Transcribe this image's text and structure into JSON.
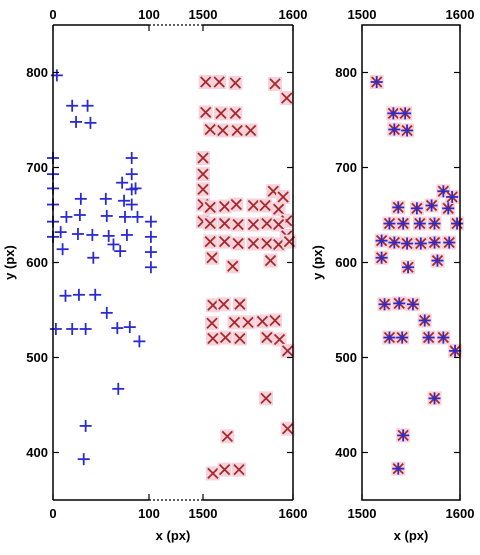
{
  "chart_data": [
    {
      "type": "scatter",
      "panel": "left",
      "xlabel": "x (px)",
      "ylabel": "y (px)",
      "x_segments": [
        {
          "xlim": [
            0,
            100
          ],
          "ticks": [
            "0",
            "100"
          ]
        },
        {
          "xlim": [
            1500,
            1600
          ],
          "ticks": [
            "1500",
            "1600"
          ]
        }
      ],
      "ylim": [
        350,
        850
      ],
      "yticks": [
        "400",
        "500",
        "600",
        "700",
        "800"
      ],
      "series": [
        {
          "marker": "plus",
          "color": "#2b2bd4",
          "points": [
            [
              4,
              797
            ],
            [
              20,
              765
            ],
            [
              36,
              765
            ],
            [
              24,
              748
            ],
            [
              39,
              747
            ],
            [
              0,
              710
            ],
            [
              0,
              693
            ],
            [
              0,
              678
            ],
            [
              0,
              661
            ],
            [
              0,
              643
            ],
            [
              0,
              627
            ],
            [
              82,
              710
            ],
            [
              82,
              693
            ],
            [
              82,
              677
            ],
            [
              82,
              661
            ],
            [
              102,
              643
            ],
            [
              102,
              627
            ],
            [
              102,
              611
            ],
            [
              102,
              595
            ],
            [
              72,
              684
            ],
            [
              86,
              678
            ],
            [
              29,
              667
            ],
            [
              55,
              667
            ],
            [
              74,
              665
            ],
            [
              88,
              648
            ],
            [
              75,
              648
            ],
            [
              56,
              649
            ],
            [
              28,
              650
            ],
            [
              14,
              648
            ],
            [
              8,
              632
            ],
            [
              26,
              630
            ],
            [
              41,
              629
            ],
            [
              58,
              628
            ],
            [
              77,
              629
            ],
            [
              63,
              619
            ],
            [
              70,
              612
            ],
            [
              10,
              614
            ],
            [
              42,
              605
            ],
            [
              13,
              565
            ],
            [
              27,
              566
            ],
            [
              44,
              566
            ],
            [
              56,
              547
            ],
            [
              67,
              531
            ],
            [
              80,
              532
            ],
            [
              3,
              530
            ],
            [
              20,
              530
            ],
            [
              34,
              530
            ],
            [
              90,
              517
            ],
            [
              68,
              467
            ],
            [
              34,
              428
            ],
            [
              32,
              393
            ]
          ]
        },
        {
          "marker": "cross",
          "color": "#a52a2a",
          "points": [
            [
              1503,
              790
            ],
            [
              1518,
              790
            ],
            [
              1536,
              789
            ],
            [
              1580,
              788
            ],
            [
              1503,
              758
            ],
            [
              1520,
              757
            ],
            [
              1536,
              757
            ],
            [
              1593,
              773
            ],
            [
              1508,
              740
            ],
            [
              1522,
              739
            ],
            [
              1538,
              739
            ],
            [
              1553,
              739
            ],
            [
              1500,
              710
            ],
            [
              1500,
              693
            ],
            [
              1500,
              677
            ],
            [
              1500,
              661
            ],
            [
              1500,
              643
            ],
            [
              1578,
              675
            ],
            [
              1589,
              669
            ],
            [
              1508,
              658
            ],
            [
              1524,
              659
            ],
            [
              1537,
              661
            ],
            [
              1556,
              660
            ],
            [
              1569,
              660
            ],
            [
              1584,
              656
            ],
            [
              1593,
              644
            ],
            [
              1508,
              641
            ],
            [
              1524,
              641
            ],
            [
              1539,
              640
            ],
            [
              1556,
              640
            ],
            [
              1571,
              641
            ],
            [
              1584,
              640
            ],
            [
              1593,
              628
            ],
            [
              1508,
              622
            ],
            [
              1524,
              622
            ],
            [
              1539,
              620
            ],
            [
              1556,
              620
            ],
            [
              1571,
              620
            ],
            [
              1584,
              619
            ],
            [
              1596,
              622
            ],
            [
              1510,
              605
            ],
            [
              1533,
              596
            ],
            [
              1575,
              602
            ],
            [
              1511,
              555
            ],
            [
              1523,
              556
            ],
            [
              1541,
              556
            ],
            [
              1510,
              536
            ],
            [
              1535,
              537
            ],
            [
              1550,
              537
            ],
            [
              1566,
              538
            ],
            [
              1580,
              539
            ],
            [
              1511,
              520
            ],
            [
              1525,
              521
            ],
            [
              1541,
              520
            ],
            [
              1571,
              521
            ],
            [
              1585,
              519
            ],
            [
              1594,
              507
            ],
            [
              1570,
              457
            ],
            [
              1594,
              425
            ],
            [
              1527,
              417
            ],
            [
              1511,
              378
            ],
            [
              1524,
              382
            ],
            [
              1540,
              382
            ]
          ]
        }
      ]
    },
    {
      "type": "scatter",
      "panel": "right",
      "xlabel": "x (px)",
      "ylabel": "y (px)",
      "xlim": [
        1500,
        1600
      ],
      "xticks": [
        "1500",
        "1600"
      ],
      "ylim": [
        350,
        850
      ],
      "yticks": [
        "400",
        "500",
        "600",
        "700",
        "800"
      ],
      "series": [
        {
          "marker": "cross",
          "color": "#a52a2a",
          "points": [
            [
              1515,
              790
            ],
            [
              1532,
              757
            ],
            [
              1544,
              757
            ],
            [
              1533,
              740
            ],
            [
              1546,
              739
            ],
            [
              1556,
              657
            ],
            [
              1571,
              660
            ],
            [
              1583,
              675
            ],
            [
              1537,
              658
            ],
            [
              1528,
              641
            ],
            [
              1542,
              641
            ],
            [
              1559,
              641
            ],
            [
              1574,
              641
            ],
            [
              1588,
              657
            ],
            [
              1592,
              669
            ],
            [
              1597,
              641
            ],
            [
              1520,
              623
            ],
            [
              1533,
              621
            ],
            [
              1546,
              620
            ],
            [
              1560,
              620
            ],
            [
              1574,
              621
            ],
            [
              1589,
              621
            ],
            [
              1520,
              605
            ],
            [
              1547,
              595
            ],
            [
              1577,
              602
            ],
            [
              1523,
              556
            ],
            [
              1538,
              557
            ],
            [
              1552,
              556
            ],
            [
              1564,
              539
            ],
            [
              1528,
              521
            ],
            [
              1541,
              521
            ],
            [
              1568,
              521
            ],
            [
              1583,
              521
            ],
            [
              1595,
              507
            ],
            [
              1574,
              457
            ],
            [
              1542,
              418
            ],
            [
              1537,
              383
            ]
          ]
        },
        {
          "marker": "plus",
          "color": "#2b2bd4",
          "points": [
            [
              1515,
              790
            ],
            [
              1532,
              757
            ],
            [
              1544,
              757
            ],
            [
              1533,
              740
            ],
            [
              1546,
              739
            ],
            [
              1556,
              657
            ],
            [
              1571,
              660
            ],
            [
              1583,
              675
            ],
            [
              1537,
              658
            ],
            [
              1528,
              641
            ],
            [
              1542,
              641
            ],
            [
              1559,
              641
            ],
            [
              1574,
              641
            ],
            [
              1588,
              657
            ],
            [
              1592,
              669
            ],
            [
              1597,
              641
            ],
            [
              1520,
              623
            ],
            [
              1533,
              621
            ],
            [
              1546,
              620
            ],
            [
              1560,
              620
            ],
            [
              1574,
              621
            ],
            [
              1589,
              621
            ],
            [
              1520,
              605
            ],
            [
              1547,
              595
            ],
            [
              1577,
              602
            ],
            [
              1523,
              556
            ],
            [
              1538,
              557
            ],
            [
              1552,
              556
            ],
            [
              1564,
              539
            ],
            [
              1528,
              521
            ],
            [
              1541,
              521
            ],
            [
              1568,
              521
            ],
            [
              1583,
              521
            ],
            [
              1595,
              507
            ],
            [
              1574,
              457
            ],
            [
              1542,
              418
            ],
            [
              1537,
              383
            ]
          ]
        }
      ]
    }
  ]
}
